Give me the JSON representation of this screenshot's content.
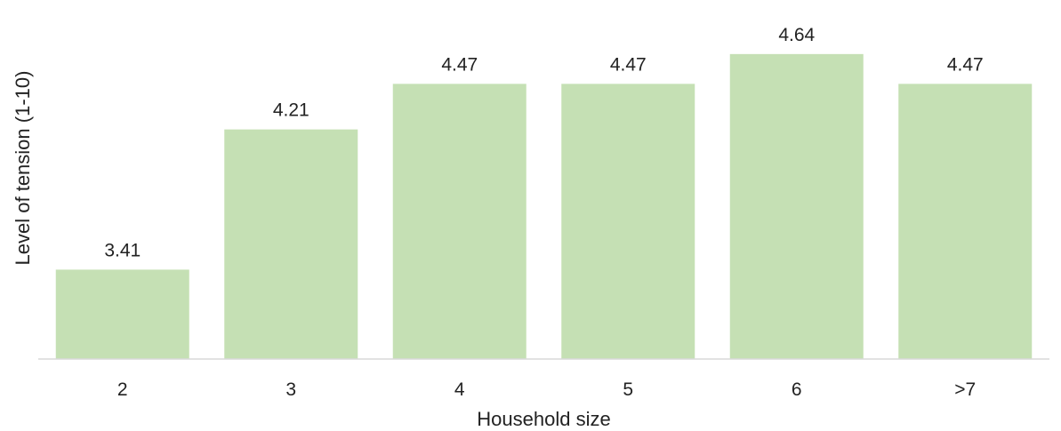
{
  "chart_data": {
    "type": "bar",
    "categories": [
      "2",
      "3",
      "4",
      "5",
      "6",
      ">7"
    ],
    "values": [
      3.41,
      4.21,
      4.47,
      4.47,
      4.64,
      4.47
    ],
    "data_labels": [
      "3.41",
      "4.21",
      "4.47",
      "4.47",
      "4.64",
      "4.47"
    ],
    "xlabel": "Household size",
    "ylabel": "Level of tension (1-10)",
    "ylim": [
      2.9,
      4.7
    ],
    "grid": false,
    "legend": "none",
    "bar_color": "#c5e0b4",
    "axis_color": "#d9d9d9"
  }
}
